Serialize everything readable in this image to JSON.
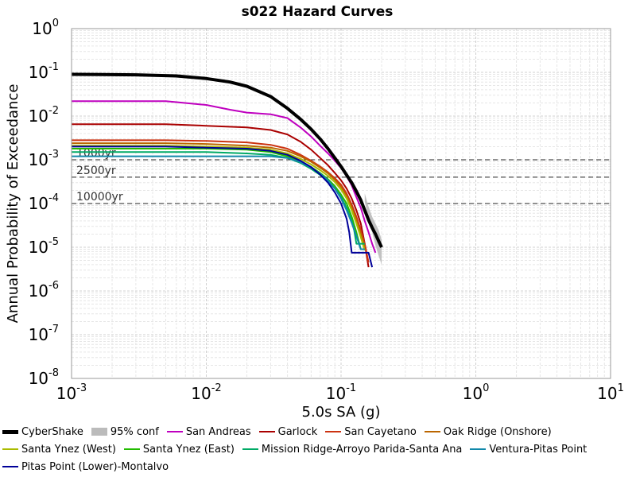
{
  "chart_data": {
    "type": "line",
    "title": "s022 Hazard Curves",
    "xlabel": "5.0s SA (g)",
    "ylabel": "Annual Probability of Exceedance",
    "x_scale": "log",
    "y_scale": "log",
    "xlim": [
      0.001,
      10
    ],
    "ylim": [
      1e-08,
      1
    ],
    "grid": true,
    "legend_position": "bottom",
    "x_ticks": [
      {
        "value": 0.001,
        "base": "10",
        "exp": "-3"
      },
      {
        "value": 0.01,
        "base": "10",
        "exp": "-2"
      },
      {
        "value": 0.1,
        "base": "10",
        "exp": "-1"
      },
      {
        "value": 1,
        "base": "10",
        "exp": "0"
      },
      {
        "value": 10,
        "base": "10",
        "exp": "1"
      }
    ],
    "y_ticks": [
      {
        "value": 1,
        "base": "10",
        "exp": "0"
      },
      {
        "value": 0.1,
        "base": "10",
        "exp": "-1"
      },
      {
        "value": 0.01,
        "base": "10",
        "exp": "-2"
      },
      {
        "value": 0.001,
        "base": "10",
        "exp": "-3"
      },
      {
        "value": 0.0001,
        "base": "10",
        "exp": "-4"
      },
      {
        "value": 1e-05,
        "base": "10",
        "exp": "-5"
      },
      {
        "value": 1e-06,
        "base": "10",
        "exp": "-6"
      },
      {
        "value": 1e-07,
        "base": "10",
        "exp": "-7"
      },
      {
        "value": 1e-08,
        "base": "10",
        "exp": "-8"
      }
    ],
    "reference_lines": [
      {
        "label": "1000yr",
        "y": 0.001
      },
      {
        "label": "2500yr",
        "y": 0.0004
      },
      {
        "label": "10000yr",
        "y": 0.0001
      }
    ],
    "confidence_band": {
      "name": "95% conf",
      "color": "#bbbbbb",
      "x": [
        0.15,
        0.16,
        0.17,
        0.18,
        0.19,
        0.2
      ],
      "lower": [
        0.00011,
        4.5e-05,
        2.2e-05,
        1.1e-05,
        6.5e-06,
        4e-06
      ],
      "upper": [
        0.00017,
        8.5e-05,
        5e-05,
        3.5e-05,
        2.5e-05,
        1.5e-05
      ]
    },
    "series": [
      {
        "name": "CyberShake",
        "color": "#000000",
        "width": 4,
        "x": [
          0.001,
          0.003,
          0.006,
          0.01,
          0.015,
          0.02,
          0.03,
          0.04,
          0.05,
          0.06,
          0.07,
          0.08,
          0.09,
          0.1,
          0.11,
          0.12,
          0.13,
          0.14,
          0.15,
          0.16,
          0.17,
          0.18,
          0.19,
          0.2
        ],
        "y": [
          0.09,
          0.088,
          0.083,
          0.072,
          0.06,
          0.048,
          0.028,
          0.015,
          0.0085,
          0.005,
          0.003,
          0.0018,
          0.0011,
          0.0007,
          0.00045,
          0.0003,
          0.00019,
          0.00012,
          7e-05,
          4.2e-05,
          2.8e-05,
          2e-05,
          1.4e-05,
          1e-05
        ]
      },
      {
        "name": "San Andreas",
        "color": "#bf00bf",
        "width": 2,
        "x": [
          0.001,
          0.005,
          0.01,
          0.015,
          0.02,
          0.03,
          0.04,
          0.05,
          0.06,
          0.07,
          0.08,
          0.09,
          0.1,
          0.11,
          0.12,
          0.13,
          0.14,
          0.15,
          0.16,
          0.17,
          0.18
        ],
        "y": [
          0.022,
          0.022,
          0.018,
          0.014,
          0.012,
          0.011,
          0.009,
          0.0055,
          0.0034,
          0.0021,
          0.0014,
          0.00095,
          0.00065,
          0.00042,
          0.00026,
          0.00014,
          8e-05,
          4e-05,
          2.2e-05,
          1.2e-05,
          7.5e-06
        ]
      },
      {
        "name": "Garlock",
        "color": "#aa0000",
        "width": 2,
        "x": [
          0.001,
          0.005,
          0.01,
          0.02,
          0.03,
          0.04,
          0.05,
          0.06,
          0.07,
          0.08,
          0.09,
          0.1,
          0.11,
          0.12,
          0.13,
          0.14,
          0.15,
          0.16
        ],
        "y": [
          0.0065,
          0.0065,
          0.006,
          0.0055,
          0.0048,
          0.0038,
          0.0026,
          0.0017,
          0.0011,
          0.00075,
          0.0005,
          0.00034,
          0.00022,
          0.00013,
          7e-05,
          3.5e-05,
          1.2e-05,
          3.5e-06
        ]
      },
      {
        "name": "San Cayetano",
        "color": "#cc3311",
        "width": 2,
        "x": [
          0.001,
          0.005,
          0.01,
          0.02,
          0.03,
          0.04,
          0.05,
          0.06,
          0.07,
          0.08,
          0.09,
          0.1,
          0.11,
          0.12,
          0.13,
          0.14,
          0.15,
          0.16
        ],
        "y": [
          0.0028,
          0.0028,
          0.0027,
          0.0025,
          0.0022,
          0.0018,
          0.0013,
          0.00095,
          0.0007,
          0.00052,
          0.00038,
          0.00027,
          0.00017,
          9.5e-05,
          5e-05,
          2.5e-05,
          1.2e-05,
          4.5e-06
        ]
      },
      {
        "name": "Oak Ridge (Onshore)",
        "color": "#bb6600",
        "width": 2,
        "x": [
          0.001,
          0.005,
          0.01,
          0.02,
          0.03,
          0.04,
          0.05,
          0.06,
          0.07,
          0.08,
          0.09,
          0.1,
          0.11,
          0.12,
          0.13,
          0.14,
          0.15
        ],
        "y": [
          0.0024,
          0.0024,
          0.0023,
          0.0021,
          0.0019,
          0.0016,
          0.0012,
          0.0009,
          0.00066,
          0.00049,
          0.00035,
          0.00024,
          0.00015,
          8e-05,
          4.2e-05,
          2.1e-05,
          1e-05
        ]
      },
      {
        "name": "Santa Ynez (West)",
        "color": "#aabb00",
        "width": 2,
        "x": [
          0.001,
          0.005,
          0.01,
          0.02,
          0.03,
          0.04,
          0.05,
          0.06,
          0.07,
          0.08,
          0.09,
          0.1,
          0.11,
          0.12,
          0.13,
          0.14,
          0.15
        ],
        "y": [
          0.0021,
          0.0021,
          0.002,
          0.0019,
          0.0017,
          0.0014,
          0.00105,
          0.00078,
          0.00058,
          0.00043,
          0.00031,
          0.00021,
          0.00013,
          7e-05,
          3.5e-05,
          1.7e-05,
          8.5e-06
        ]
      },
      {
        "name": "Santa Ynez (East)",
        "color": "#22bb00",
        "width": 2,
        "x": [
          0.001,
          0.005,
          0.01,
          0.02,
          0.03,
          0.04,
          0.05,
          0.06,
          0.07,
          0.08,
          0.09,
          0.1,
          0.11,
          0.12,
          0.13,
          0.14
        ],
        "y": [
          0.0018,
          0.0018,
          0.0018,
          0.0017,
          0.0015,
          0.0012,
          0.00092,
          0.00068,
          0.0005,
          0.00036,
          0.00025,
          0.00016,
          0.0001,
          5e-05,
          2.2e-05,
          9e-06
        ]
      },
      {
        "name": "Mission Ridge-Arroyo Parida-Santa Ana",
        "color": "#00aa66",
        "width": 2,
        "x": [
          0.001,
          0.005,
          0.01,
          0.02,
          0.03,
          0.04,
          0.05,
          0.06,
          0.07,
          0.08,
          0.09,
          0.1,
          0.11,
          0.12,
          0.125,
          0.13,
          0.14,
          0.15
        ],
        "y": [
          0.0015,
          0.0015,
          0.0015,
          0.0014,
          0.0013,
          0.0011,
          0.00085,
          0.00062,
          0.00045,
          0.00032,
          0.00022,
          0.00014,
          8e-05,
          4e-05,
          2.5e-05,
          1.2e-05,
          1.2e-05,
          1.2e-05
        ]
      },
      {
        "name": "Ventura-Pitas Point",
        "color": "#1188aa",
        "width": 2,
        "x": [
          0.001,
          0.005,
          0.01,
          0.02,
          0.03,
          0.04,
          0.05,
          0.06,
          0.07,
          0.08,
          0.09,
          0.1,
          0.11,
          0.12,
          0.13,
          0.14,
          0.15
        ],
        "y": [
          0.0012,
          0.0012,
          0.0012,
          0.0012,
          0.0012,
          0.0011,
          0.00088,
          0.00066,
          0.00048,
          0.00034,
          0.00022,
          0.00013,
          7e-05,
          3.6e-05,
          1.8e-05,
          9e-06,
          9e-06
        ]
      },
      {
        "name": "Pitas Point (Lower)-Montalvo",
        "color": "#000099",
        "width": 2,
        "x": [
          0.001,
          0.005,
          0.01,
          0.02,
          0.03,
          0.04,
          0.05,
          0.06,
          0.07,
          0.08,
          0.09,
          0.1,
          0.11,
          0.115,
          0.12,
          0.15,
          0.16,
          0.17
        ],
        "y": [
          0.002,
          0.002,
          0.0019,
          0.0018,
          0.0016,
          0.0013,
          0.00095,
          0.00068,
          0.00046,
          0.0003,
          0.00018,
          0.0001,
          4.5e-05,
          2.2e-05,
          7.5e-06,
          7.5e-06,
          7.5e-06,
          3.5e-06
        ]
      }
    ]
  },
  "legend": {
    "rows": [
      [
        "CyberShake",
        "95% conf",
        "San Andreas",
        "Garlock",
        "San Cayetano",
        "Oak Ridge (Onshore)"
      ],
      [
        "Santa Ynez (West)",
        "Santa Ynez (East)",
        "Mission Ridge-Arroyo Parida-Santa Ana",
        "Ventura-Pitas Point"
      ],
      [
        "Pitas Point (Lower)-Montalvo"
      ]
    ]
  }
}
